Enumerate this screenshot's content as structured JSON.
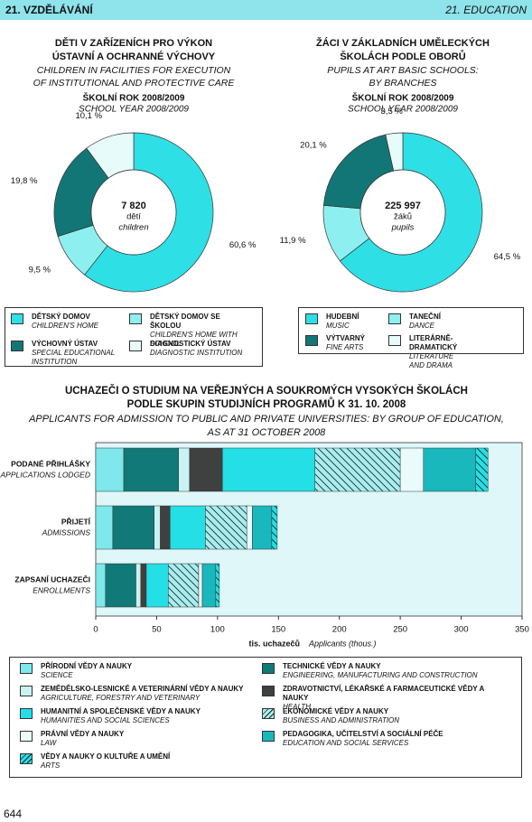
{
  "header": {
    "left": "21. VZDĚLÁVÁNÍ",
    "right": "21. EDUCATION"
  },
  "chart_data": [
    {
      "type": "donut",
      "title": [
        "DĚTI V ZAŘÍZENÍCH PRO VÝKON",
        "ÚSTAVNÍ A OCHRANNÉ VÝCHOVY"
      ],
      "subtitle": [
        "CHILDREN IN FACILITIES FOR EXECUTION",
        "OF INSTITUTIONAL AND PROTECTIVE CARE"
      ],
      "school_year": "ŠKOLNÍ ROK 2008/2009",
      "school_year_en": "SCHOOL YEAR 2008/2009",
      "center_text": [
        "7 820",
        "dětí",
        "children"
      ],
      "categories": [
        "DĚTSKÝ DOMOV",
        "DĚTSKÝ DOMOV SE ŠKOLOU",
        "VÝCHOVNÝ ÚSTAV",
        "DIAGNOSTICKÝ ÚSTAV"
      ],
      "categories_en": [
        "CHILDREN'S HOME",
        "CHILDREN'S HOME WITH SCHOOL",
        "SPECIAL EDUCATIONAL INSTITUTION",
        "DIAGNOSTIC INSTITUTION"
      ],
      "values": [
        60.6,
        9.5,
        19.8,
        10.1
      ],
      "value_labels": [
        "60,6 %",
        "9,5 %",
        "19,8 %",
        "10,1 %"
      ],
      "colors": [
        "#2ee0e6",
        "#8eeff1",
        "#137676",
        "#e8fbfb"
      ]
    },
    {
      "type": "donut",
      "title": [
        "ŽÁCI V ZÁKLADNÍCH UMĚLECKÝCH",
        "ŠKOLÁCH PODLE OBORŮ"
      ],
      "subtitle": [
        "PUPILS AT ART BASIC SCHOOLS:",
        "BY BRANCHES"
      ],
      "school_year": "ŠKOLNÍ ROK 2008/2009",
      "school_year_en": "SCHOOL YEAR 2008/2009",
      "center_text": [
        "225 997",
        "žáků",
        "pupils"
      ],
      "categories": [
        "HUDEBNÍ",
        "TANEČNÍ",
        "VÝTVARNÝ",
        "LITERÁRNĚ-DRAMATICKÝ"
      ],
      "categories_en": [
        "MUSIC",
        "DANCE",
        "FINE ARTS",
        "LITERATURE AND DRAMA"
      ],
      "values": [
        64.5,
        11.9,
        20.1,
        3.5
      ],
      "value_labels": [
        "64,5 %",
        "11,9 %",
        "20,1 %",
        "3,5 %"
      ],
      "colors": [
        "#2ee0e6",
        "#8eeff1",
        "#137676",
        "#e8fbfb"
      ]
    },
    {
      "type": "barh_stacked",
      "title": [
        "UCHAZEČI O STUDIUM NA VEŘEJNÝCH A SOUKROMÝCH VYSOKÝCH ŠKOLÁCH",
        "PODLE SKUPIN STUDIJNÍCH PROGRAMŮ K 31. 10. 2008"
      ],
      "subtitle": [
        "APPLICANTS FOR ADMISSION TO PUBLIC AND PRIVATE UNIVERSITIES: BY GROUP OF EDUCATION,",
        "AS AT 31 OCTOBER 2008"
      ],
      "categories": [
        "PODANÉ PŘIHLÁŠKY",
        "PŘIJETÍ",
        "ZAPSANÍ UCHAZEČI"
      ],
      "categories_en": [
        "APPLICATIONS LODGED",
        "ADMISSIONS",
        "ENROLLMENTS"
      ],
      "xlim": [
        0,
        350
      ],
      "xticks": [
        0,
        50,
        100,
        150,
        200,
        250,
        300,
        350
      ],
      "xlabel": "tis. uchazečů",
      "xlabel_en": "Applicants (thous.)",
      "series": [
        {
          "name": "PŘÍRODNÍ VĚDY A NAUKY",
          "name_en": "SCIENCE",
          "color": "#7ee8ec",
          "hatch": false,
          "values": [
            23,
            14,
            8
          ]
        },
        {
          "name": "TECHNICKÉ VĚDY A NAUKY",
          "name_en": "ENGINEERING, MANUFACTURING AND CONSTRUCTION",
          "color": "#117a78",
          "hatch": false,
          "values": [
            45,
            34,
            25
          ]
        },
        {
          "name": "ZEMĚDĚLSKO-LESNICKÉ A VETERINÁRNÍ VĚDY A NAUKY",
          "name_en": "AGRICULTURE, FORESTRY AND VETERINARY",
          "color": "#c9f3f3",
          "hatch": false,
          "values": [
            9,
            5,
            4
          ]
        },
        {
          "name": "ZDRAVOTNICTVÍ, LÉKAŘSKÉ A FARMACEUTICKÉ VĚDY A NAUKY",
          "name_en": "HEALTH",
          "color": "#3f4040",
          "hatch": false,
          "values": [
            27,
            8,
            4.5
          ]
        },
        {
          "name": "HUMANITNÍ A SPOLEČENSKÉ VĚDY A NAUKY",
          "name_en": "HUMANITIES AND SOCIAL SCIENCES",
          "color": "#24dfe5",
          "hatch": false,
          "values": [
            76,
            29,
            18
          ]
        },
        {
          "name": "EKONOMICKÉ VĚDY A NAUKY",
          "name_en": "BUSINESS AND ADMINISTRATION",
          "color": "#a6eef0",
          "hatch": true,
          "values": [
            70,
            34,
            25
          ]
        },
        {
          "name": "PRÁVNÍ VĚDY A NAUKY",
          "name_en": "LAW",
          "color": "#eafbfb",
          "hatch": false,
          "values": [
            19,
            4.5,
            3
          ]
        },
        {
          "name": "PEDAGOGIKA, UČITELSTVÍ A SOCIÁLNÍ PÉČE",
          "name_en": "EDUCATION AND SOCIAL SERVICES",
          "color": "#19b8bd",
          "hatch": false,
          "values": [
            43,
            16,
            11
          ]
        },
        {
          "name": "VĚDY A NAUKY O KULTUŘE A UMĚNÍ",
          "name_en": "ARTS",
          "color": "#24dfe5",
          "hatch": true,
          "values": [
            10,
            4.5,
            3
          ]
        }
      ]
    }
  ],
  "page_number": "644"
}
